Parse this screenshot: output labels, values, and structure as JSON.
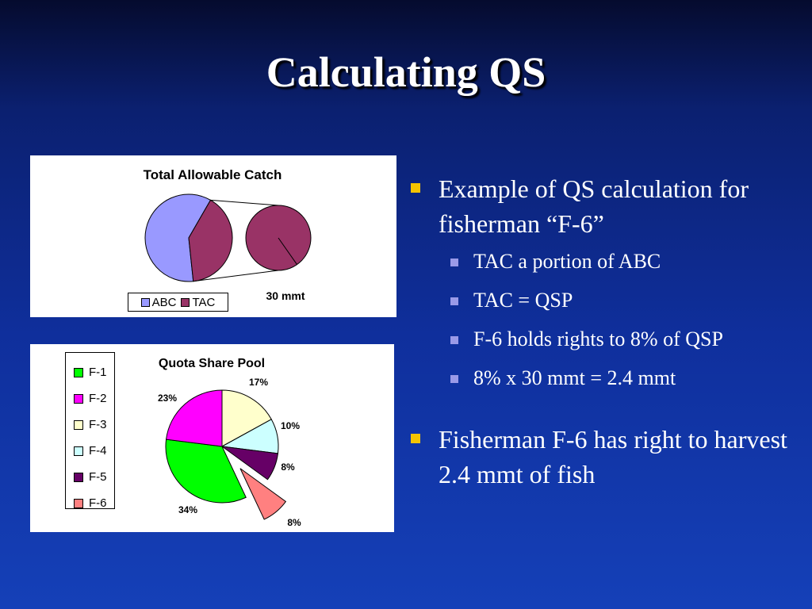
{
  "slide": {
    "title": "Calculating QS"
  },
  "tac_chart": {
    "title": "Total Allowable Catch",
    "legend": [
      {
        "label": "ABC",
        "color": "#9999ff"
      },
      {
        "label": "TAC",
        "color": "#993366"
      }
    ],
    "annotation": "30 mmt"
  },
  "qsp_chart": {
    "title": "Quota Share Pool",
    "legend": [
      {
        "label": "F-1",
        "color": "#00ff00"
      },
      {
        "label": "F-2",
        "color": "#ff00ff"
      },
      {
        "label": "F-3",
        "color": "#ffffcc"
      },
      {
        "label": "F-4",
        "color": "#ccffff"
      },
      {
        "label": "F-5",
        "color": "#660066"
      },
      {
        "label": "F-6",
        "color": "#ff8080"
      }
    ],
    "labels": [
      "34%",
      "23%",
      "17%",
      "10%",
      "8%",
      "8%"
    ]
  },
  "bullets": [
    {
      "text": "Example of QS calculation for fisherman “F-6”",
      "sub": [
        "TAC a portion of ABC",
        "TAC = QSP",
        "F-6 holds rights to 8% of QSP",
        "8%  x  30 mmt = 2.4 mmt"
      ]
    },
    {
      "text": "Fisherman F-6 has right to harvest 2.4 mmt of fish",
      "sub": []
    }
  ],
  "chart_data": [
    {
      "type": "pie",
      "title": "Total Allowable Catch",
      "categories": [
        "ABC",
        "TAC"
      ],
      "values": [
        60,
        40
      ],
      "secondary_pie_label": "30 mmt",
      "legend": "bottom"
    },
    {
      "type": "pie",
      "title": "Quota Share Pool",
      "categories": [
        "F-1",
        "F-2",
        "F-3",
        "F-4",
        "F-5",
        "F-6"
      ],
      "values": [
        34,
        23,
        17,
        10,
        8,
        8
      ],
      "exploded": [
        "F-6"
      ],
      "legend": "left"
    }
  ]
}
